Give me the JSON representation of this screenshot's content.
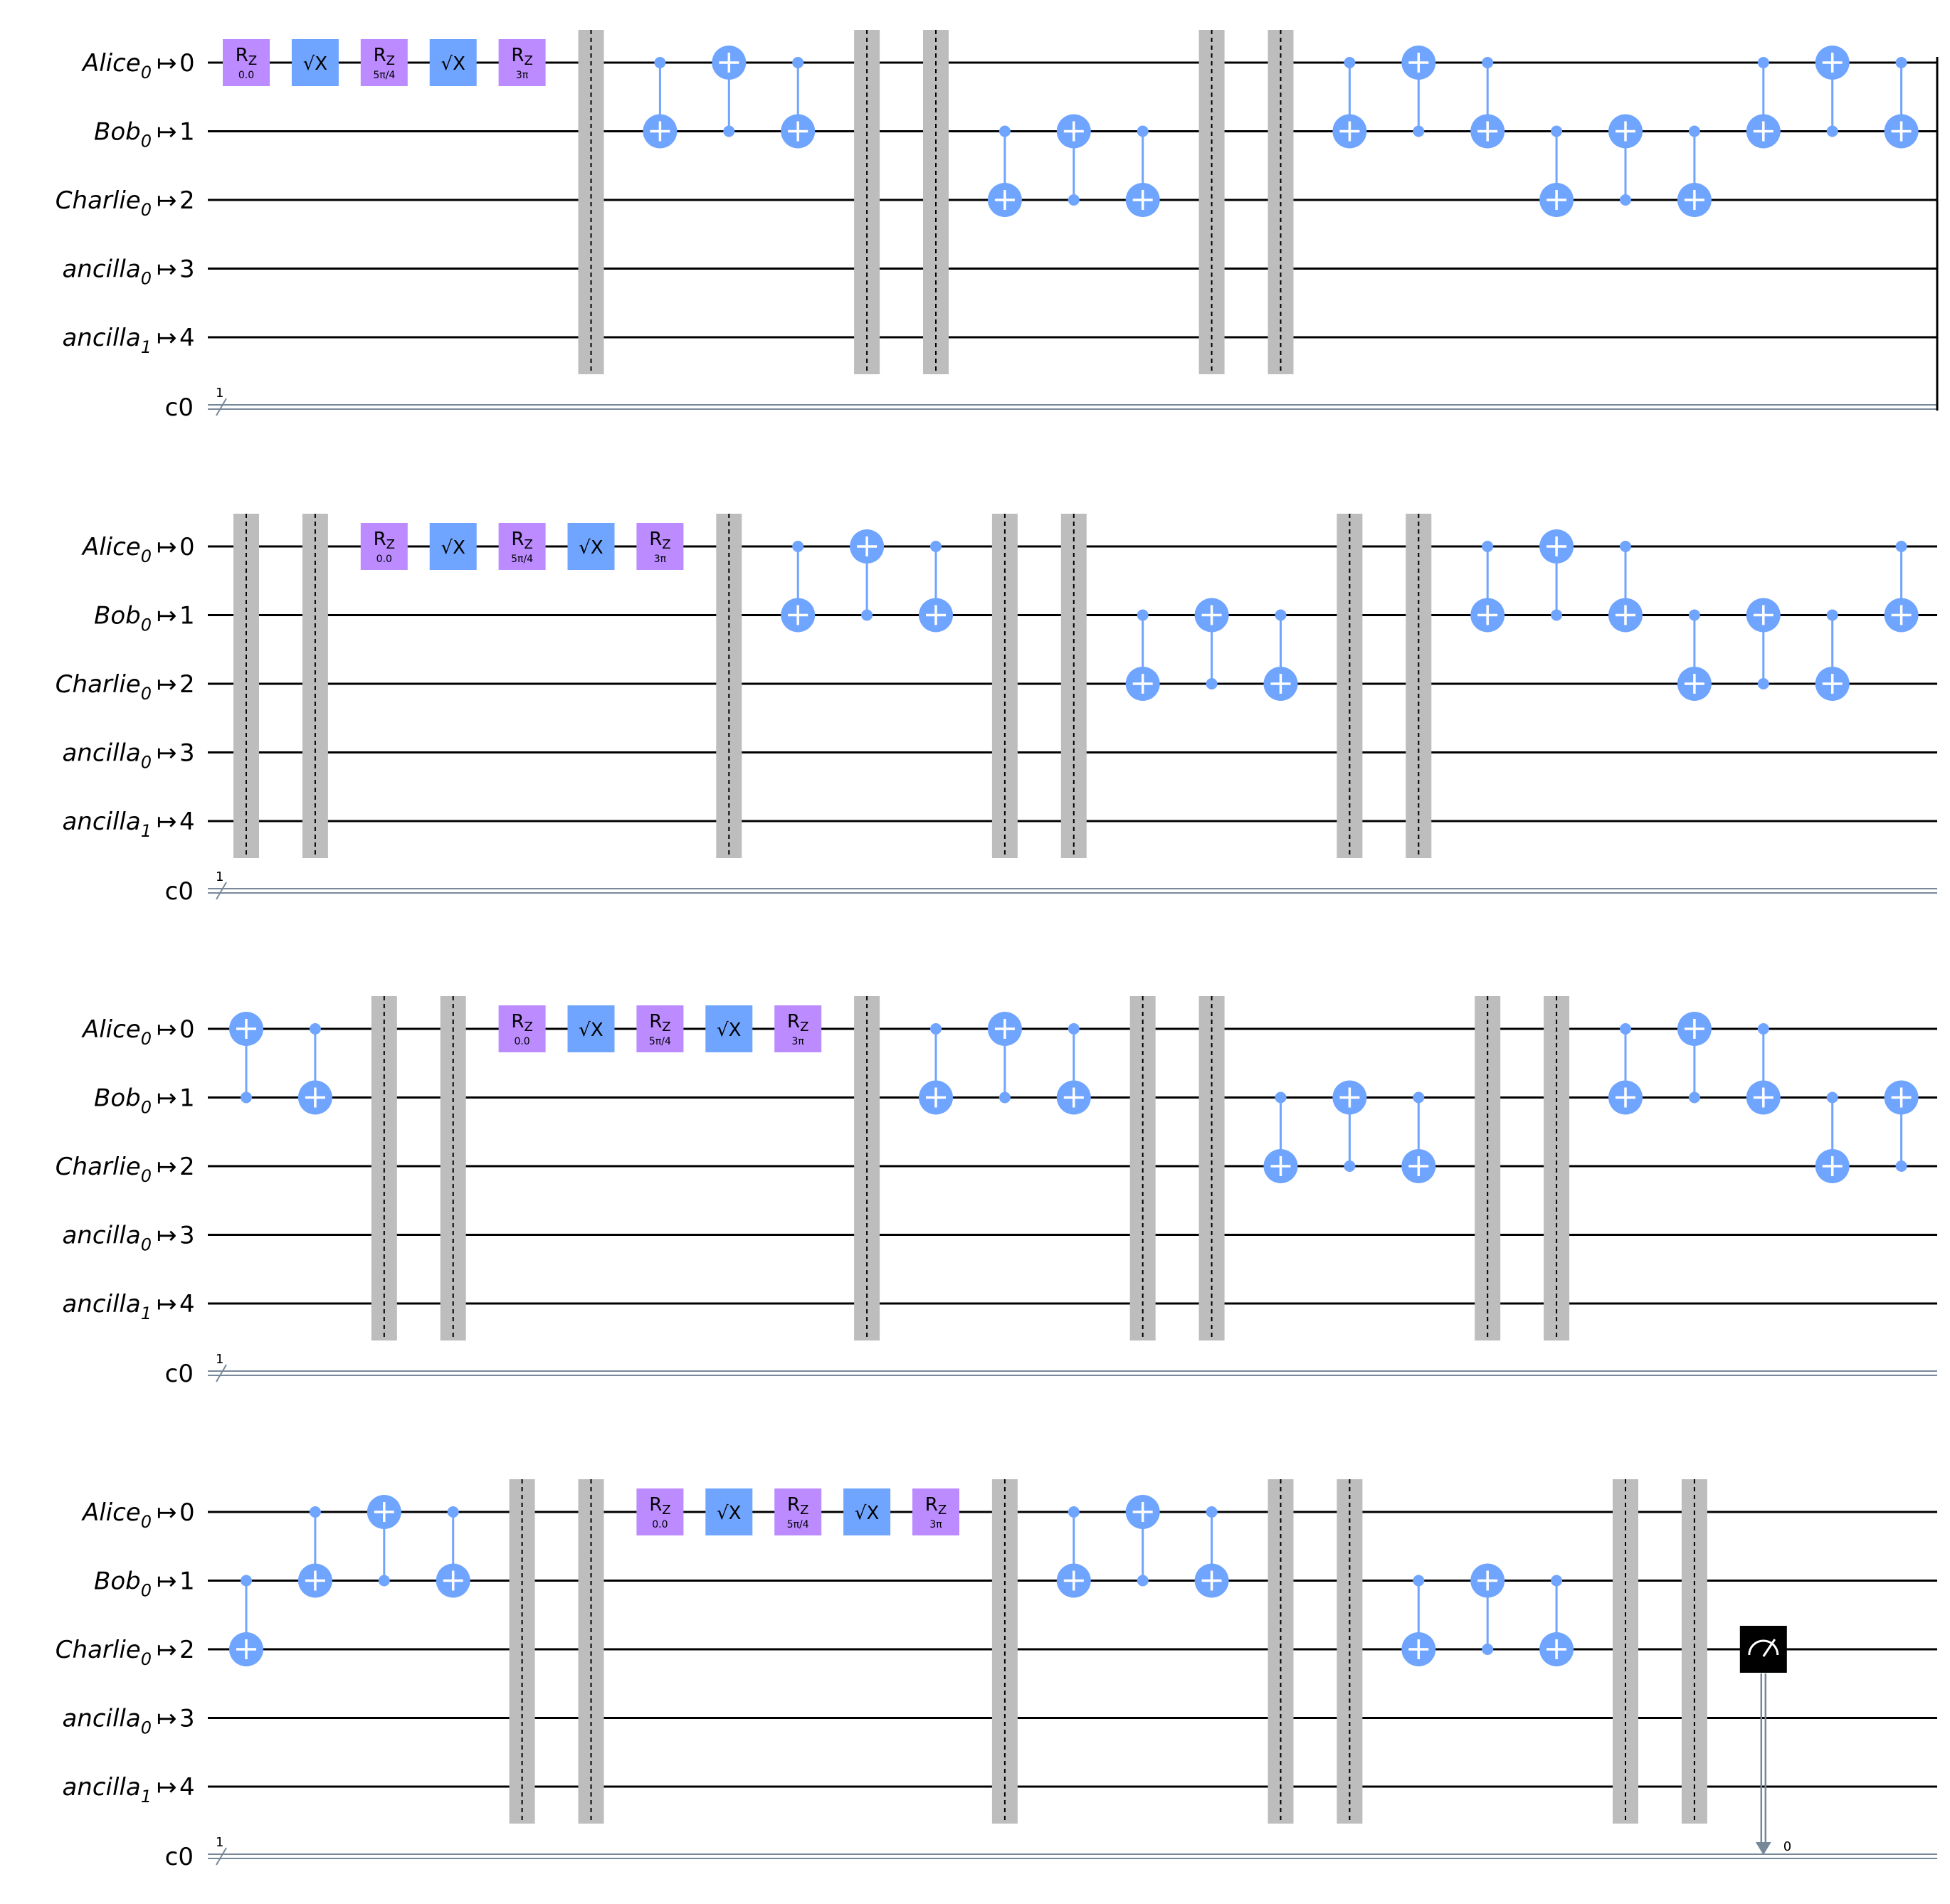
{
  "wires": [
    {
      "name": "Alice",
      "sub": "0",
      "index": "0"
    },
    {
      "name": "Bob",
      "sub": "0",
      "index": "1"
    },
    {
      "name": "Charlie",
      "sub": "0",
      "index": "2"
    },
    {
      "name": "ancilla",
      "sub": "0",
      "index": "3"
    },
    {
      "name": "ancilla",
      "sub": "1",
      "index": "4"
    }
  ],
  "mapsto": "↦",
  "classical": {
    "name": "c0",
    "width_label": "1",
    "bit_label": "0"
  },
  "gates": {
    "rz_label": "R",
    "rz_sub": "Z",
    "sx_label": "√X",
    "rz_params": [
      "0.0",
      "5π/4",
      "3π"
    ]
  },
  "colors": {
    "rz": "#bb8bff",
    "sx": "#6fa4ff",
    "cx": "#6fa4ff",
    "barrier": "#bdbdbd",
    "wire": "#000000",
    "cwire": "#778899",
    "measure": "#000000"
  },
  "rows": [
    {
      "ops": [
        {
          "t": "seq"
        },
        {
          "t": "barrier"
        },
        {
          "t": "cx",
          "c": 0,
          "x": 1
        },
        {
          "t": "cx",
          "c": 1,
          "x": 0
        },
        {
          "t": "cx",
          "c": 0,
          "x": 1
        },
        {
          "t": "barrier"
        },
        {
          "t": "barrier"
        },
        {
          "t": "cx",
          "c": 1,
          "x": 2
        },
        {
          "t": "cx",
          "c": 2,
          "x": 1
        },
        {
          "t": "cx",
          "c": 1,
          "x": 2
        },
        {
          "t": "barrier"
        },
        {
          "t": "barrier"
        },
        {
          "t": "cx",
          "c": 0,
          "x": 1
        },
        {
          "t": "cx",
          "c": 1,
          "x": 0
        },
        {
          "t": "cx",
          "c": 0,
          "x": 1
        },
        {
          "t": "cx",
          "c": 1,
          "x": 2
        },
        {
          "t": "cx",
          "c": 2,
          "x": 1
        },
        {
          "t": "cx",
          "c": 1,
          "x": 2
        },
        {
          "t": "cx",
          "c": 0,
          "x": 1
        },
        {
          "t": "cx",
          "c": 1,
          "x": 0
        },
        {
          "t": "cx",
          "c": 0,
          "x": 1
        }
      ],
      "end_line": true
    },
    {
      "ops": [
        {
          "t": "barrier"
        },
        {
          "t": "barrier"
        },
        {
          "t": "seq"
        },
        {
          "t": "barrier"
        },
        {
          "t": "cx",
          "c": 0,
          "x": 1
        },
        {
          "t": "cx",
          "c": 1,
          "x": 0
        },
        {
          "t": "cx",
          "c": 0,
          "x": 1
        },
        {
          "t": "barrier"
        },
        {
          "t": "barrier"
        },
        {
          "t": "cx",
          "c": 1,
          "x": 2
        },
        {
          "t": "cx",
          "c": 2,
          "x": 1
        },
        {
          "t": "cx",
          "c": 1,
          "x": 2
        },
        {
          "t": "barrier"
        },
        {
          "t": "barrier"
        },
        {
          "t": "cx",
          "c": 0,
          "x": 1
        },
        {
          "t": "cx",
          "c": 1,
          "x": 0
        },
        {
          "t": "cx",
          "c": 0,
          "x": 1
        },
        {
          "t": "cx",
          "c": 1,
          "x": 2
        },
        {
          "t": "cx",
          "c": 2,
          "x": 1
        },
        {
          "t": "cx",
          "c": 1,
          "x": 2
        },
        {
          "t": "cx",
          "c": 0,
          "x": 1
        }
      ],
      "end_line": false
    },
    {
      "ops": [
        {
          "t": "cx",
          "c": 1,
          "x": 0
        },
        {
          "t": "cx",
          "c": 0,
          "x": 1
        },
        {
          "t": "barrier"
        },
        {
          "t": "barrier"
        },
        {
          "t": "seq"
        },
        {
          "t": "barrier"
        },
        {
          "t": "cx",
          "c": 0,
          "x": 1
        },
        {
          "t": "cx",
          "c": 1,
          "x": 0
        },
        {
          "t": "cx",
          "c": 0,
          "x": 1
        },
        {
          "t": "barrier"
        },
        {
          "t": "barrier"
        },
        {
          "t": "cx",
          "c": 1,
          "x": 2
        },
        {
          "t": "cx",
          "c": 2,
          "x": 1
        },
        {
          "t": "cx",
          "c": 1,
          "x": 2
        },
        {
          "t": "barrier"
        },
        {
          "t": "barrier"
        },
        {
          "t": "cx",
          "c": 0,
          "x": 1
        },
        {
          "t": "cx",
          "c": 1,
          "x": 0
        },
        {
          "t": "cx",
          "c": 0,
          "x": 1
        },
        {
          "t": "cx",
          "c": 1,
          "x": 2
        },
        {
          "t": "cx",
          "c": 2,
          "x": 1
        }
      ],
      "end_line": false
    },
    {
      "ops": [
        {
          "t": "cx",
          "c": 1,
          "x": 2
        },
        {
          "t": "cx",
          "c": 0,
          "x": 1
        },
        {
          "t": "cx",
          "c": 1,
          "x": 0
        },
        {
          "t": "cx",
          "c": 0,
          "x": 1
        },
        {
          "t": "barrier"
        },
        {
          "t": "barrier"
        },
        {
          "t": "seq"
        },
        {
          "t": "barrier"
        },
        {
          "t": "cx",
          "c": 0,
          "x": 1
        },
        {
          "t": "cx",
          "c": 1,
          "x": 0
        },
        {
          "t": "cx",
          "c": 0,
          "x": 1
        },
        {
          "t": "barrier"
        },
        {
          "t": "barrier"
        },
        {
          "t": "cx",
          "c": 1,
          "x": 2
        },
        {
          "t": "cx",
          "c": 2,
          "x": 1
        },
        {
          "t": "cx",
          "c": 1,
          "x": 2
        },
        {
          "t": "barrier"
        },
        {
          "t": "barrier"
        },
        {
          "t": "measure",
          "q": 2,
          "bit": 0
        }
      ],
      "end_line": false
    }
  ]
}
